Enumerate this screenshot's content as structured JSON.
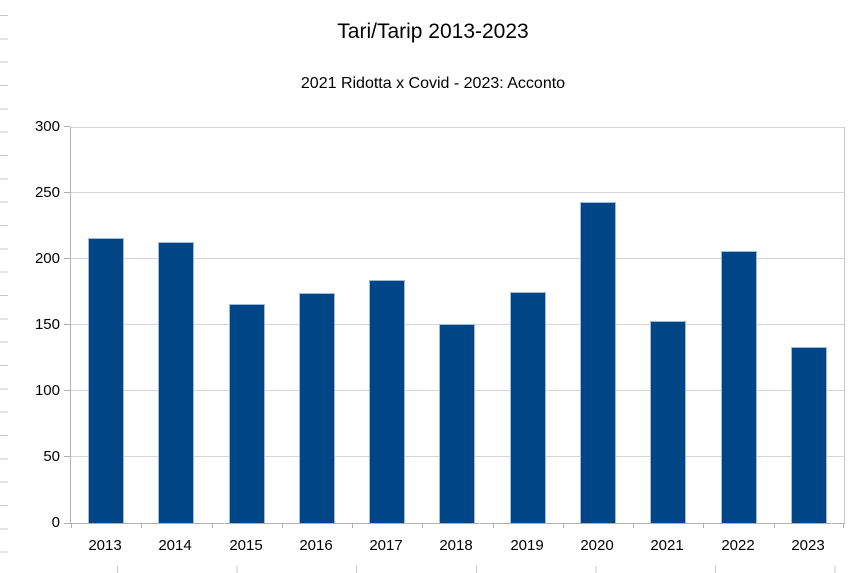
{
  "chart": {
    "title": "Tari/Tarip 2013-2023",
    "subtitle": "2021 Ridotta x Covid - 2023: Acconto"
  },
  "chart_data": {
    "type": "bar",
    "title": "Tari/Tarip 2013-2023",
    "subtitle": "2021 Ridotta x Covid - 2023: Acconto",
    "categories": [
      "2013",
      "2014",
      "2015",
      "2016",
      "2017",
      "2018",
      "2019",
      "2020",
      "2021",
      "2022",
      "2023"
    ],
    "values": [
      216,
      213,
      166,
      174,
      184,
      151,
      175,
      243,
      153,
      206,
      133
    ],
    "xlabel": "",
    "ylabel": "",
    "ylim": [
      0,
      300
    ],
    "yticks": [
      0,
      50,
      100,
      150,
      200,
      250,
      300
    ],
    "grid": true,
    "legend_position": "none",
    "bar_color": "#004586",
    "bar_border_color": "#9fbbd8",
    "grid_color": "#d6d6d6",
    "axis_color": "#b0b0b0"
  }
}
